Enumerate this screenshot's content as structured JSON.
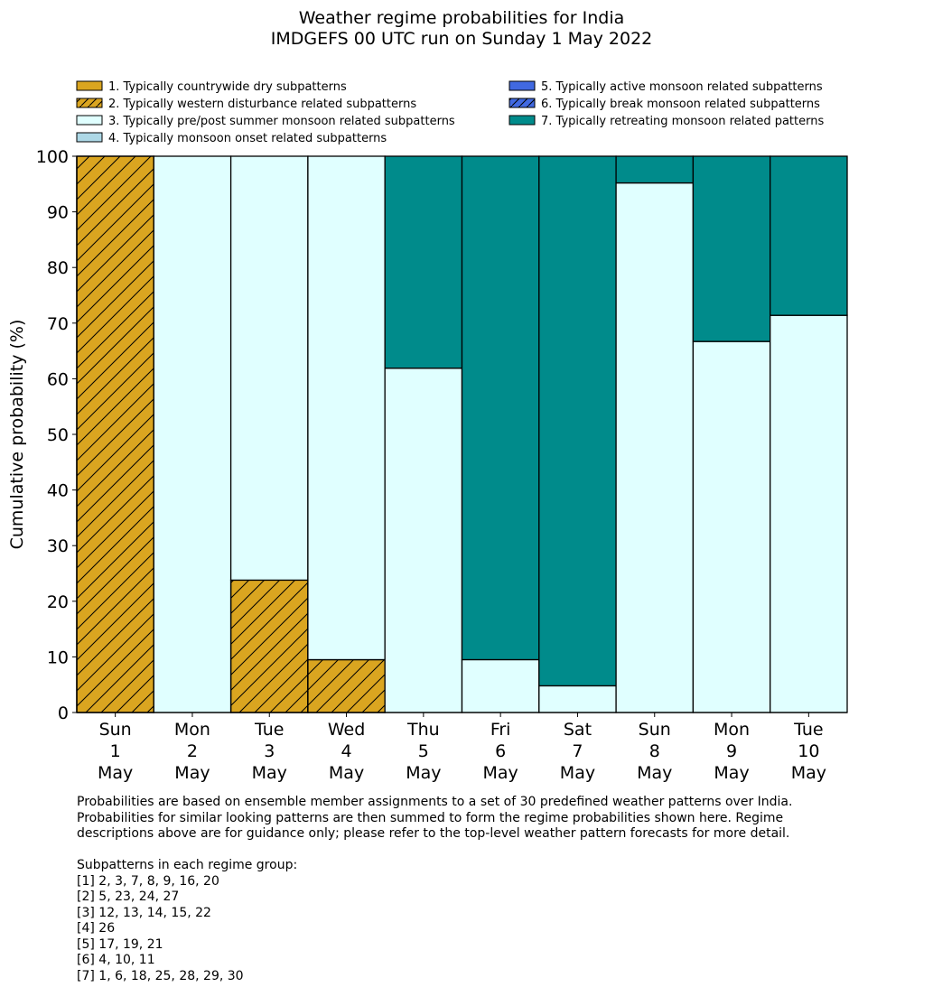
{
  "chart_data": {
    "type": "bar",
    "stacked": true,
    "title": "Weather regime probabilities for India",
    "subtitle": "IMDGEFS 00 UTC run on Sunday 1 May 2022",
    "ylabel": "Cumulative probability (%)",
    "ylim": [
      0,
      100
    ],
    "yticks": [
      0,
      10,
      20,
      30,
      40,
      50,
      60,
      70,
      80,
      90,
      100
    ],
    "categories": [
      [
        "Sun",
        "1",
        "May"
      ],
      [
        "Mon",
        "2",
        "May"
      ],
      [
        "Tue",
        "3",
        "May"
      ],
      [
        "Wed",
        "4",
        "May"
      ],
      [
        "Thu",
        "5",
        "May"
      ],
      [
        "Fri",
        "6",
        "May"
      ],
      [
        "Sat",
        "7",
        "May"
      ],
      [
        "Sun",
        "8",
        "May"
      ],
      [
        "Mon",
        "9",
        "May"
      ],
      [
        "Tue",
        "10",
        "May"
      ]
    ],
    "legend_placement": "top",
    "series": [
      {
        "name": "1. Typically countrywide dry subpatterns",
        "color": "#DAA520",
        "hatch": false,
        "values": [
          0,
          0,
          0,
          0,
          0,
          0,
          0,
          0,
          0,
          0
        ]
      },
      {
        "name": "2. Typically western disturbance related subpatterns",
        "color": "#DAA520",
        "hatch": true,
        "values": [
          100,
          0,
          23.8,
          9.5,
          0,
          0,
          0,
          0,
          0,
          0
        ]
      },
      {
        "name": "3. Typically pre/post summer monsoon related subpatterns",
        "color": "#E0FFFF",
        "hatch": false,
        "values": [
          0,
          100,
          76.2,
          90.5,
          61.9,
          9.5,
          4.8,
          95.2,
          66.7,
          71.4
        ]
      },
      {
        "name": "4. Typically monsoon onset related subpatterns",
        "color": "#ADD8E6",
        "hatch": false,
        "values": [
          0,
          0,
          0,
          0,
          0,
          0,
          0,
          0,
          0,
          0
        ]
      },
      {
        "name": "5. Typically active monsoon related subpatterns",
        "color": "#4169E1",
        "hatch": false,
        "values": [
          0,
          0,
          0,
          0,
          0,
          0,
          0,
          0,
          0,
          0
        ]
      },
      {
        "name": "6. Typically break monsoon related subpatterns",
        "color": "#4169E1",
        "hatch": true,
        "values": [
          0,
          0,
          0,
          0,
          0,
          0,
          0,
          0,
          0,
          0
        ]
      },
      {
        "name": "7. Typically retreating monsoon related patterns",
        "color": "#008B8B",
        "hatch": false,
        "values": [
          0,
          0,
          0,
          0,
          38.1,
          90.5,
          95.2,
          4.8,
          33.3,
          28.6
        ]
      }
    ]
  },
  "notes": [
    "Probabilities are based on ensemble member assignments to a set of 30 predefined weather patterns over India.",
    "Probabilities for similar looking patterns are then summed to form the regime probabilities shown here. Regime",
    "descriptions above are for guidance only; please refer to the top-level weather pattern forecasts for more detail.",
    "",
    "Subpatterns in each regime group:",
    "[1] 2, 3, 7, 8, 9, 16, 20",
    "[2] 5, 23, 24, 27",
    "[3] 12, 13, 14, 15, 22",
    "[4] 26",
    "[5] 17, 19, 21",
    "[6] 4, 10, 11",
    "[7] 1, 6, 18, 25, 28, 29, 30"
  ]
}
